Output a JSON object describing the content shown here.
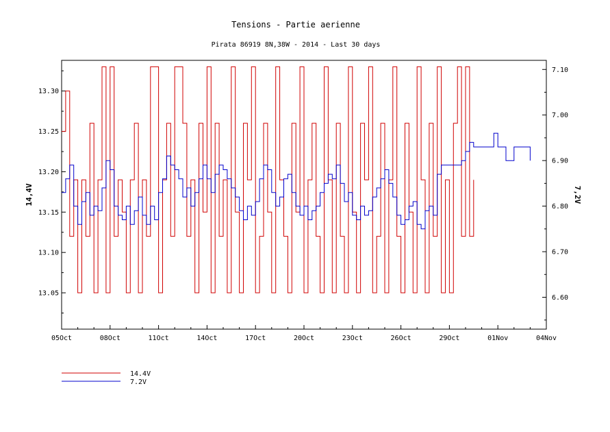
{
  "chart_data": {
    "type": "line",
    "title": "Tensions - Partie aerienne",
    "subtitle": "Pirata 86919 8N,38W - 2014 - Last 30 days",
    "x_tick_labels": [
      "05Oct",
      "08Oct",
      "11Oct",
      "14Oct",
      "17Oct",
      "20Oct",
      "23Oct",
      "26Oct",
      "29Oct",
      "01Nov",
      "04Nov"
    ],
    "x_range_days": [
      0,
      30
    ],
    "left_axis": {
      "label": "14,4V",
      "ylim": [
        13.005,
        13.338
      ],
      "ticks": [
        13.05,
        13.1,
        13.15,
        13.2,
        13.25,
        13.3
      ],
      "tick_labels": [
        "13.05",
        "13.10",
        "13.15",
        "13.20",
        "13.25",
        "13.30"
      ]
    },
    "right_axis": {
      "label": "7,2V",
      "ylim": [
        6.53,
        7.12
      ],
      "ticks": [
        6.6,
        6.7,
        6.8,
        6.9,
        7.0,
        7.1
      ],
      "tick_labels": [
        "6.60",
        "6.70",
        "6.80",
        "6.90",
        "7.00",
        "7.10"
      ]
    },
    "series": [
      {
        "name": "14.4V",
        "axis": "left",
        "color": "#d00000",
        "x": [
          0.0,
          0.25,
          0.5,
          0.75,
          1.0,
          1.25,
          1.5,
          1.75,
          2.0,
          2.25,
          2.5,
          2.75,
          3.0,
          3.25,
          3.5,
          3.75,
          4.0,
          4.25,
          4.5,
          4.75,
          5.0,
          5.25,
          5.5,
          5.75,
          6.0,
          6.25,
          6.5,
          6.75,
          7.0,
          7.25,
          7.5,
          7.75,
          8.0,
          8.25,
          8.5,
          8.75,
          9.0,
          9.25,
          9.5,
          9.75,
          10.0,
          10.25,
          10.5,
          10.75,
          11.0,
          11.25,
          11.5,
          11.75,
          12.0,
          12.25,
          12.5,
          12.75,
          13.0,
          13.25,
          13.5,
          13.75,
          14.0,
          14.25,
          14.5,
          14.75,
          15.0,
          15.25,
          15.5,
          15.75,
          16.0,
          16.25,
          16.5,
          16.75,
          17.0,
          17.25,
          17.5,
          17.75,
          18.0,
          18.25,
          18.5,
          18.75,
          19.0,
          19.25,
          19.5,
          19.75,
          20.0,
          20.25,
          20.5,
          20.75,
          21.0,
          21.25,
          21.5,
          21.75,
          22.0,
          22.25,
          22.5,
          22.75,
          23.0,
          23.25,
          23.5,
          23.75,
          24.0,
          24.25,
          24.5,
          24.75,
          25.0,
          25.25,
          25.5
        ],
        "values": [
          13.25,
          13.3,
          13.12,
          13.19,
          13.05,
          13.19,
          13.12,
          13.26,
          13.05,
          13.19,
          13.33,
          13.05,
          13.33,
          13.12,
          13.19,
          13.15,
          13.05,
          13.19,
          13.26,
          13.05,
          13.19,
          13.12,
          13.33,
          13.33,
          13.05,
          13.19,
          13.26,
          13.12,
          13.33,
          13.33,
          13.26,
          13.12,
          13.19,
          13.05,
          13.26,
          13.15,
          13.33,
          13.05,
          13.26,
          13.12,
          13.19,
          13.05,
          13.33,
          13.15,
          13.05,
          13.26,
          13.19,
          13.33,
          13.05,
          13.12,
          13.26,
          13.15,
          13.05,
          13.33,
          13.19,
          13.12,
          13.05,
          13.26,
          13.15,
          13.33,
          13.05,
          13.19,
          13.26,
          13.12,
          13.05,
          13.33,
          13.19,
          13.05,
          13.26,
          13.12,
          13.05,
          13.33,
          13.15,
          13.05,
          13.26,
          13.19,
          13.33,
          13.05,
          13.12,
          13.26,
          13.05,
          13.19,
          13.33,
          13.12,
          13.05,
          13.26,
          13.15,
          13.05,
          13.33,
          13.19,
          13.05,
          13.26,
          13.12,
          13.33,
          13.05,
          13.19,
          13.05,
          13.26,
          13.33,
          13.12,
          13.33,
          13.12,
          13.19
        ]
      },
      {
        "name": "7.2V",
        "axis": "right",
        "color": "#0000cc",
        "x": [
          0.0,
          0.25,
          0.5,
          0.75,
          1.0,
          1.25,
          1.5,
          1.75,
          2.0,
          2.25,
          2.5,
          2.75,
          3.0,
          3.25,
          3.5,
          3.75,
          4.0,
          4.25,
          4.5,
          4.75,
          5.0,
          5.25,
          5.5,
          5.75,
          6.0,
          6.25,
          6.5,
          6.75,
          7.0,
          7.25,
          7.5,
          7.75,
          8.0,
          8.25,
          8.5,
          8.75,
          9.0,
          9.25,
          9.5,
          9.75,
          10.0,
          10.25,
          10.5,
          10.75,
          11.0,
          11.25,
          11.5,
          11.75,
          12.0,
          12.25,
          12.5,
          12.75,
          13.0,
          13.25,
          13.5,
          13.75,
          14.0,
          14.25,
          14.5,
          14.75,
          15.0,
          15.25,
          15.5,
          15.75,
          16.0,
          16.25,
          16.5,
          16.75,
          17.0,
          17.25,
          17.5,
          17.75,
          18.0,
          18.25,
          18.5,
          18.75,
          19.0,
          19.25,
          19.5,
          19.75,
          20.0,
          20.25,
          20.5,
          20.75,
          21.0,
          21.25,
          21.5,
          21.75,
          22.0,
          22.25,
          22.5,
          22.75,
          23.0,
          23.25,
          23.5,
          23.75,
          24.0,
          24.25,
          24.5,
          24.75,
          25.0,
          25.25,
          25.5,
          25.75,
          26.0,
          26.25,
          26.5,
          26.75,
          27.0,
          27.25,
          27.5,
          27.75,
          28.0,
          28.25,
          28.5,
          28.75,
          29.0
        ],
        "values": [
          6.83,
          6.86,
          6.89,
          6.8,
          6.76,
          6.81,
          6.83,
          6.78,
          6.8,
          6.79,
          6.84,
          6.9,
          6.88,
          6.8,
          6.78,
          6.77,
          6.8,
          6.76,
          6.79,
          6.82,
          6.78,
          6.76,
          6.8,
          6.77,
          6.83,
          6.86,
          6.91,
          6.89,
          6.88,
          6.86,
          6.82,
          6.84,
          6.8,
          6.83,
          6.86,
          6.89,
          6.86,
          6.83,
          6.87,
          6.89,
          6.88,
          6.86,
          6.84,
          6.82,
          6.79,
          6.77,
          6.8,
          6.78,
          6.81,
          6.86,
          6.89,
          6.88,
          6.83,
          6.8,
          6.82,
          6.86,
          6.87,
          6.83,
          6.8,
          6.78,
          6.8,
          6.77,
          6.79,
          6.8,
          6.83,
          6.85,
          6.87,
          6.86,
          6.89,
          6.85,
          6.81,
          6.83,
          6.78,
          6.77,
          6.8,
          6.78,
          6.79,
          6.82,
          6.84,
          6.86,
          6.88,
          6.85,
          6.82,
          6.78,
          6.76,
          6.77,
          6.8,
          6.81,
          6.76,
          6.75,
          6.79,
          6.8,
          6.78,
          6.87,
          6.89,
          6.89,
          6.89,
          6.89,
          6.89,
          6.9,
          6.92,
          6.94,
          6.93,
          6.93,
          6.93,
          6.93,
          6.93,
          6.96,
          6.93,
          6.93,
          6.9,
          6.9,
          6.93,
          6.93,
          6.93,
          6.93,
          6.9
        ]
      }
    ],
    "legend": {
      "placement": "bottom-left",
      "entries": [
        {
          "label": "14.4V",
          "color": "#d00000"
        },
        {
          "label": "7.2V",
          "color": "#0000cc"
        }
      ]
    },
    "grid": false
  }
}
